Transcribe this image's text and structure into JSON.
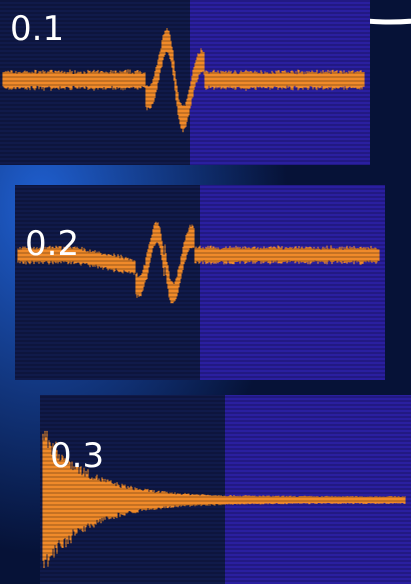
{
  "panels": [
    {
      "label": "0.1"
    },
    {
      "label": "0.2"
    },
    {
      "label": "0.3"
    }
  ]
}
